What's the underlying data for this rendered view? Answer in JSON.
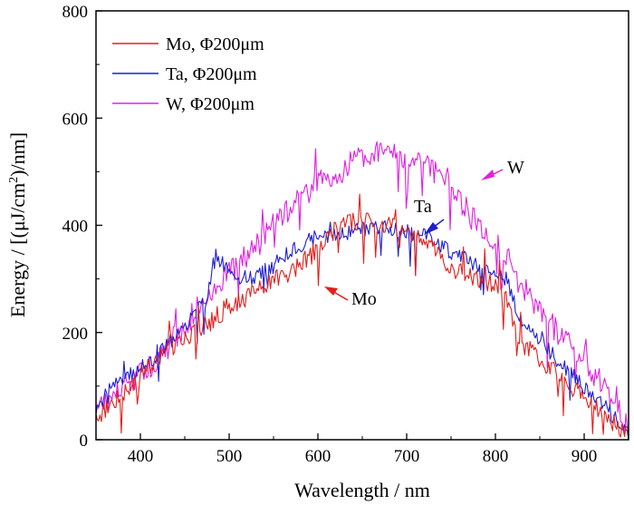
{
  "chart_data": {
    "type": "line",
    "title": "",
    "xlabel": "Wavelength / nm",
    "ylabel_prefix": "Energy / [(μJ/cm",
    "ylabel_sup": "2",
    "ylabel_suffix": ")/nm]",
    "xlim": [
      350,
      950
    ],
    "ylim": [
      0,
      800
    ],
    "x_ticks": [
      400,
      500,
      600,
      700,
      800,
      900
    ],
    "y_ticks": [
      0,
      200,
      400,
      600,
      800
    ],
    "grid": false,
    "legend_position": "top-left",
    "series": [
      {
        "name": "Mo, Φ200μm",
        "color": "#e0201b",
        "noise": 18,
        "x": [
          350,
          375,
          400,
          425,
          450,
          475,
          500,
          525,
          550,
          575,
          600,
          625,
          650,
          675,
          700,
          725,
          750,
          775,
          800,
          812,
          825,
          850,
          875,
          900,
          925,
          950
        ],
        "values": [
          40,
          80,
          120,
          160,
          190,
          215,
          250,
          270,
          295,
          320,
          355,
          400,
          410,
          400,
          390,
          370,
          320,
          300,
          290,
          270,
          185,
          150,
          115,
          80,
          45,
          5
        ]
      },
      {
        "name": "Ta, Φ200μm",
        "color": "#1f1fd0",
        "noise": 15,
        "x": [
          350,
          375,
          400,
          425,
          450,
          475,
          485,
          500,
          525,
          550,
          575,
          600,
          625,
          650,
          675,
          700,
          725,
          750,
          775,
          800,
          812,
          825,
          850,
          875,
          900,
          925,
          950
        ],
        "values": [
          60,
          110,
          135,
          165,
          215,
          260,
          345,
          310,
          300,
          325,
          360,
          378,
          382,
          392,
          398,
          388,
          378,
          350,
          330,
          315,
          300,
          235,
          185,
          140,
          100,
          60,
          10
        ]
      },
      {
        "name": "W, Φ200μm",
        "color": "#e020e0",
        "noise": 24,
        "x": [
          350,
          375,
          400,
          425,
          450,
          475,
          500,
          525,
          550,
          575,
          600,
          625,
          650,
          675,
          700,
          725,
          750,
          775,
          800,
          825,
          850,
          875,
          900,
          925,
          950
        ],
        "values": [
          55,
          90,
          120,
          160,
          215,
          265,
          310,
          350,
          400,
          445,
          480,
          505,
          530,
          535,
          530,
          510,
          470,
          410,
          370,
          300,
          240,
          190,
          150,
          90,
          20
        ]
      }
    ],
    "annotations": [
      {
        "label": "W",
        "color": "#e020e0"
      },
      {
        "label": "Ta",
        "color": "#1f1fd0"
      },
      {
        "label": "Mo",
        "color": "#e0201b"
      }
    ]
  }
}
